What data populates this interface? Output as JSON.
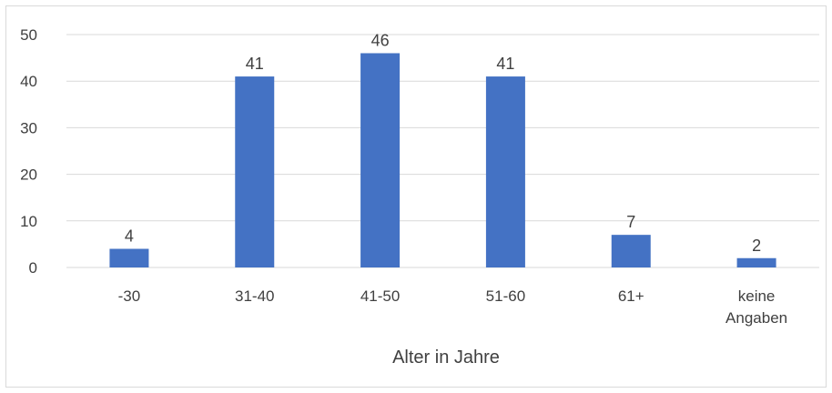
{
  "chart_data": {
    "type": "bar",
    "categories": [
      "-30",
      "31-40",
      "41-50",
      "51-60",
      "61+",
      "keine Angaben"
    ],
    "category_lines": [
      [
        "-30"
      ],
      [
        "31-40"
      ],
      [
        "41-50"
      ],
      [
        "51-60"
      ],
      [
        "61+"
      ],
      [
        "keine",
        "Angaben"
      ]
    ],
    "values": [
      4,
      41,
      46,
      41,
      7,
      2
    ],
    "title": "",
    "xlabel": "Alter in Jahre",
    "ylabel": "",
    "ylim": [
      0,
      50
    ],
    "yticks": [
      0,
      10,
      20,
      30,
      40,
      50
    ],
    "grid": true,
    "legend": "none",
    "colors": {
      "bar": "#4472c4",
      "grid": "#d9d9d9",
      "text": "#404040"
    }
  }
}
